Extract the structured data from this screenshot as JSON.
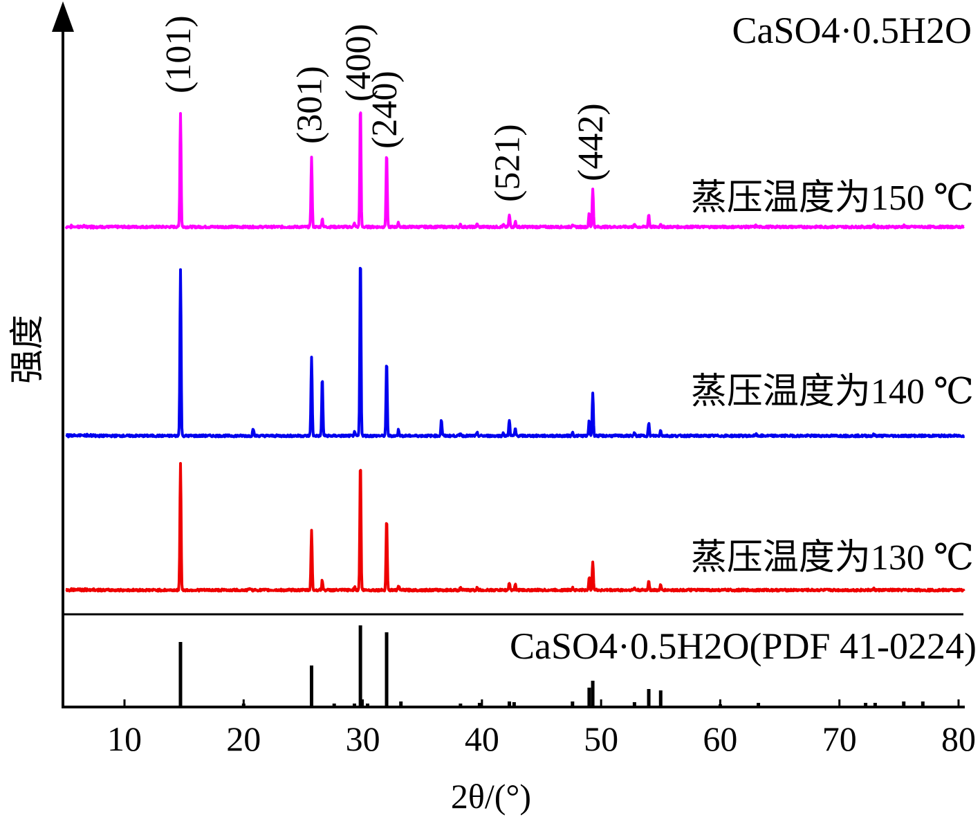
{
  "chart_data": {
    "type": "line",
    "title": "CaSO4·0.5H2O",
    "xlabel": "2θ/(°)",
    "ylabel": "强度",
    "xlim": [
      5,
      80
    ],
    "xticks": [
      10,
      20,
      30,
      40,
      50,
      60,
      70,
      80
    ],
    "grid": false,
    "hkl_labels": [
      {
        "text": "(101)",
        "x": 14.7
      },
      {
        "text": "(301)",
        "x": 25.7
      },
      {
        "text": "(400)",
        "x": 29.8
      },
      {
        "text": "(240)",
        "x": 32.0
      },
      {
        "text": "(521)",
        "x": 42.3
      },
      {
        "text": "(442)",
        "x": 49.3
      }
    ],
    "series": [
      {
        "name": "蒸压温度为150 ℃",
        "color": "#ff00ff",
        "baseline": 0,
        "peaks": [
          {
            "x": 14.7,
            "y": 165
          },
          {
            "x": 25.7,
            "y": 100
          },
          {
            "x": 26.6,
            "y": 12
          },
          {
            "x": 29.3,
            "y": 5
          },
          {
            "x": 29.8,
            "y": 178
          },
          {
            "x": 32.0,
            "y": 108
          },
          {
            "x": 33.0,
            "y": 6
          },
          {
            "x": 38.2,
            "y": 3
          },
          {
            "x": 39.6,
            "y": 4
          },
          {
            "x": 41.8,
            "y": 3
          },
          {
            "x": 42.3,
            "y": 17
          },
          {
            "x": 42.8,
            "y": 8
          },
          {
            "x": 47.6,
            "y": 4
          },
          {
            "x": 49.0,
            "y": 20
          },
          {
            "x": 49.3,
            "y": 56
          },
          {
            "x": 52.8,
            "y": 3
          },
          {
            "x": 54.0,
            "y": 18
          },
          {
            "x": 55.0,
            "y": 5
          },
          {
            "x": 63.0,
            "y": 2
          },
          {
            "x": 72.9,
            "y": 2
          },
          {
            "x": 75.4,
            "y": 2
          }
        ]
      },
      {
        "name": "蒸压温度为140 ℃",
        "color": "#0000ee",
        "baseline": 0,
        "peaks": [
          {
            "x": 14.7,
            "y": 240
          },
          {
            "x": 20.8,
            "y": 11
          },
          {
            "x": 25.7,
            "y": 113
          },
          {
            "x": 26.6,
            "y": 84
          },
          {
            "x": 29.3,
            "y": 5
          },
          {
            "x": 29.8,
            "y": 262
          },
          {
            "x": 32.0,
            "y": 108
          },
          {
            "x": 33.0,
            "y": 9
          },
          {
            "x": 36.6,
            "y": 23
          },
          {
            "x": 38.2,
            "y": 4
          },
          {
            "x": 39.6,
            "y": 4
          },
          {
            "x": 41.8,
            "y": 4
          },
          {
            "x": 42.3,
            "y": 23
          },
          {
            "x": 42.8,
            "y": 10
          },
          {
            "x": 47.6,
            "y": 5
          },
          {
            "x": 49.0,
            "y": 22
          },
          {
            "x": 49.3,
            "y": 62
          },
          {
            "x": 52.8,
            "y": 4
          },
          {
            "x": 54.0,
            "y": 18
          },
          {
            "x": 55.0,
            "y": 8
          },
          {
            "x": 63.0,
            "y": 2
          },
          {
            "x": 72.9,
            "y": 2
          }
        ]
      },
      {
        "name": "蒸压温度为130 ℃",
        "color": "#ee0000",
        "baseline": 0,
        "peaks": [
          {
            "x": 14.7,
            "y": 182
          },
          {
            "x": 20.5,
            "y": 3
          },
          {
            "x": 25.7,
            "y": 86
          },
          {
            "x": 26.6,
            "y": 14
          },
          {
            "x": 29.3,
            "y": 5
          },
          {
            "x": 29.8,
            "y": 188
          },
          {
            "x": 32.0,
            "y": 104
          },
          {
            "x": 33.0,
            "y": 7
          },
          {
            "x": 38.2,
            "y": 3
          },
          {
            "x": 39.6,
            "y": 3
          },
          {
            "x": 42.3,
            "y": 11
          },
          {
            "x": 42.8,
            "y": 8
          },
          {
            "x": 47.6,
            "y": 4
          },
          {
            "x": 49.0,
            "y": 18
          },
          {
            "x": 49.3,
            "y": 42
          },
          {
            "x": 52.8,
            "y": 3
          },
          {
            "x": 54.0,
            "y": 14
          },
          {
            "x": 55.0,
            "y": 7
          },
          {
            "x": 72.9,
            "y": 2
          }
        ]
      }
    ],
    "reference": {
      "name": "CaSO4·0.5H2O(PDF 41-0224)",
      "color": "#000000",
      "lines": [
        {
          "x": 14.7,
          "y": 94
        },
        {
          "x": 20.0,
          "y": 5
        },
        {
          "x": 25.7,
          "y": 60
        },
        {
          "x": 27.6,
          "y": 5
        },
        {
          "x": 29.3,
          "y": 5
        },
        {
          "x": 29.8,
          "y": 118
        },
        {
          "x": 30.4,
          "y": 5
        },
        {
          "x": 32.0,
          "y": 108
        },
        {
          "x": 33.2,
          "y": 8
        },
        {
          "x": 38.2,
          "y": 5
        },
        {
          "x": 39.8,
          "y": 6
        },
        {
          "x": 42.3,
          "y": 8
        },
        {
          "x": 42.7,
          "y": 7
        },
        {
          "x": 47.6,
          "y": 8
        },
        {
          "x": 49.0,
          "y": 28
        },
        {
          "x": 49.3,
          "y": 38
        },
        {
          "x": 52.8,
          "y": 7
        },
        {
          "x": 54.0,
          "y": 26
        },
        {
          "x": 55.0,
          "y": 24
        },
        {
          "x": 60.0,
          "y": 4
        },
        {
          "x": 63.2,
          "y": 6
        },
        {
          "x": 72.2,
          "y": 6
        },
        {
          "x": 73.0,
          "y": 6
        },
        {
          "x": 75.4,
          "y": 8
        },
        {
          "x": 77.0,
          "y": 8
        }
      ]
    }
  }
}
